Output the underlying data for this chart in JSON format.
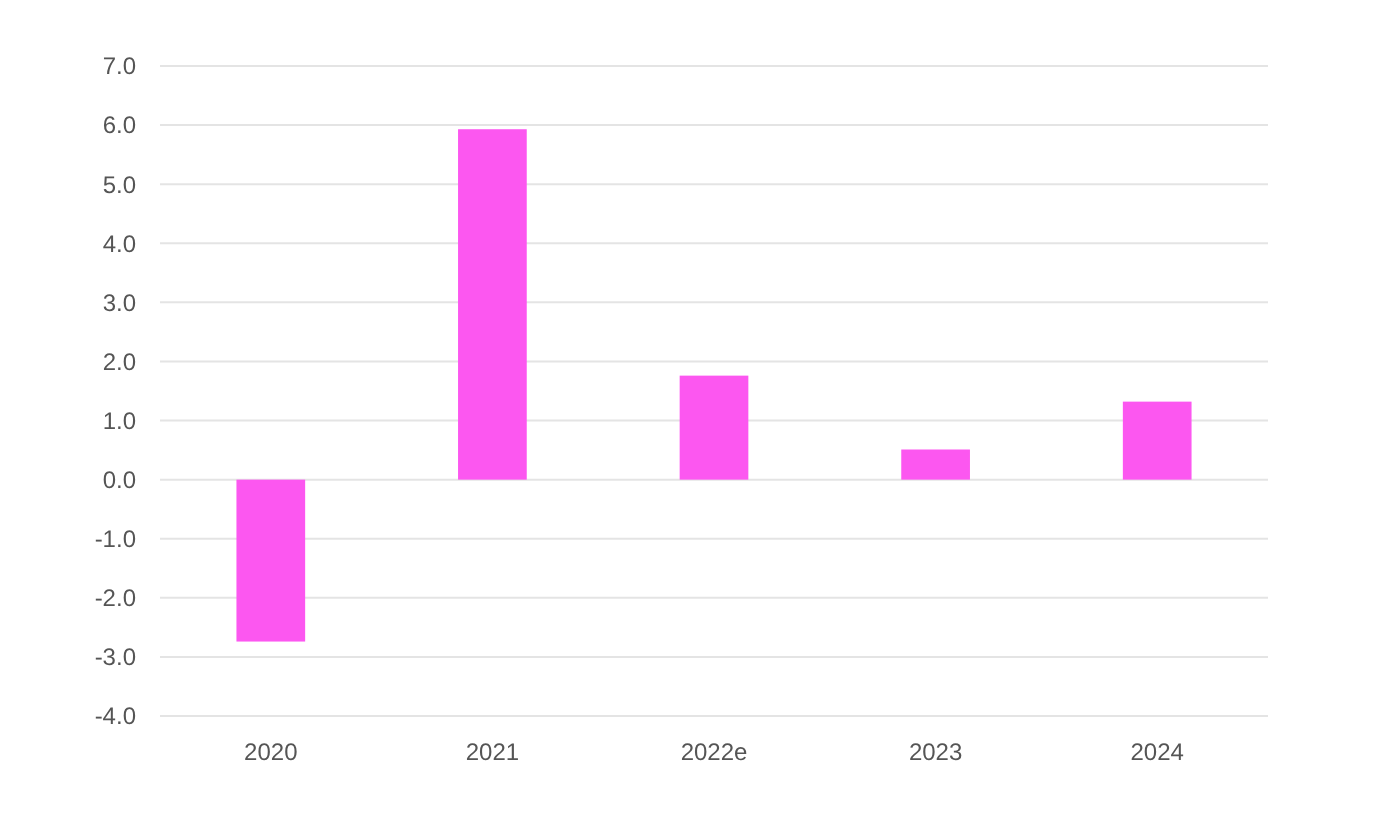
{
  "chart_data": {
    "type": "bar",
    "categories": [
      "2020",
      "2021",
      "2022e",
      "2023",
      "2024"
    ],
    "values": [
      -2.74,
      5.93,
      1.76,
      0.51,
      1.32
    ],
    "color": "#fc57f0",
    "ylim": [
      -4,
      7
    ],
    "yticks": [
      {
        "value": -4,
        "label": "-4.0"
      },
      {
        "value": -3,
        "label": "-3.0"
      },
      {
        "value": -2,
        "label": "-2.0"
      },
      {
        "value": -1,
        "label": "-1.0"
      },
      {
        "value": 0,
        "label": "0.0"
      },
      {
        "value": 1,
        "label": "1.0"
      },
      {
        "value": 2,
        "label": "2.0"
      },
      {
        "value": 3,
        "label": "3.0"
      },
      {
        "value": 4,
        "label": "4.0"
      },
      {
        "value": 5,
        "label": "5.0"
      },
      {
        "value": 6,
        "label": "6.0"
      },
      {
        "value": 7,
        "label": "7.0"
      }
    ],
    "grid": true
  }
}
